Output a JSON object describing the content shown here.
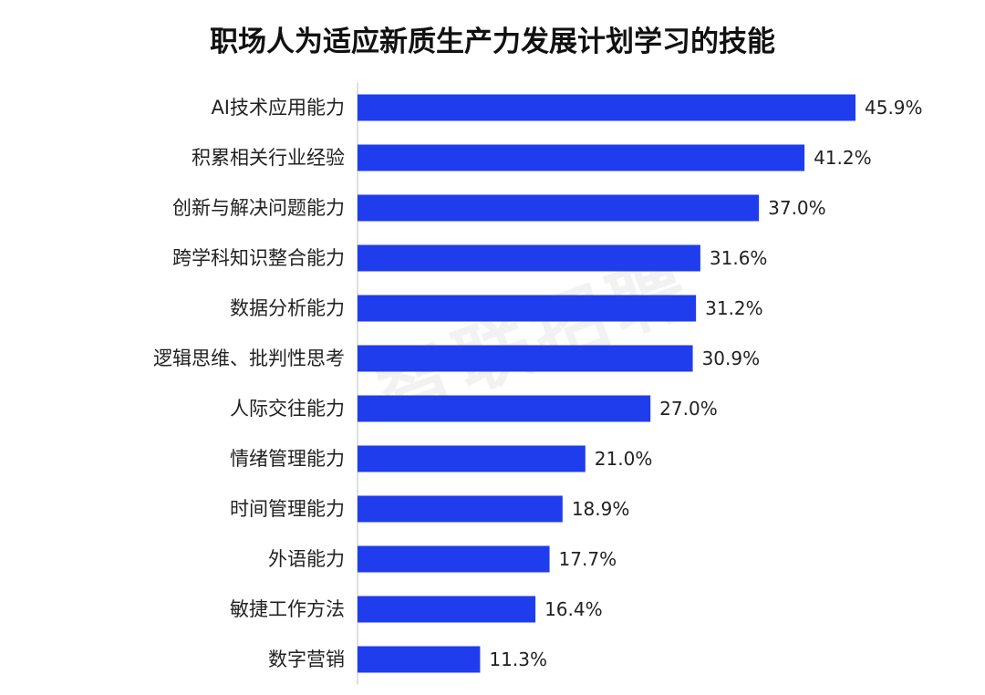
{
  "title": "职场人为适应新质生产力发展计划学习的技能",
  "watermark": "智联招聘",
  "colors": {
    "bar": "#1f3ded",
    "axis": "#bfbfbf",
    "text": "#222222"
  },
  "chart_data": {
    "type": "bar",
    "orientation": "horizontal",
    "title": "职场人为适应新质生产力发展计划学习的技能",
    "categories": [
      "AI技术应用能力",
      "积累相关行业经验",
      "创新与解决问题能力",
      "跨学科知识整合能力",
      "数据分析能力",
      "逻辑思维、批判性思考",
      "人际交往能力",
      "情绪管理能力",
      "时间管理能力",
      "外语能力",
      "敏捷工作方法",
      "数字营销"
    ],
    "values": [
      45.9,
      41.2,
      37.0,
      31.6,
      31.2,
      30.9,
      27.0,
      21.0,
      18.9,
      17.7,
      16.4,
      11.3
    ],
    "value_labels": [
      "45.9%",
      "41.2%",
      "37.0%",
      "31.6%",
      "31.2%",
      "30.9%",
      "27.0%",
      "21.0%",
      "18.9%",
      "17.7%",
      "16.4%",
      "11.3%"
    ],
    "xlim": [
      0,
      50
    ],
    "grid": false,
    "legend": "none"
  }
}
